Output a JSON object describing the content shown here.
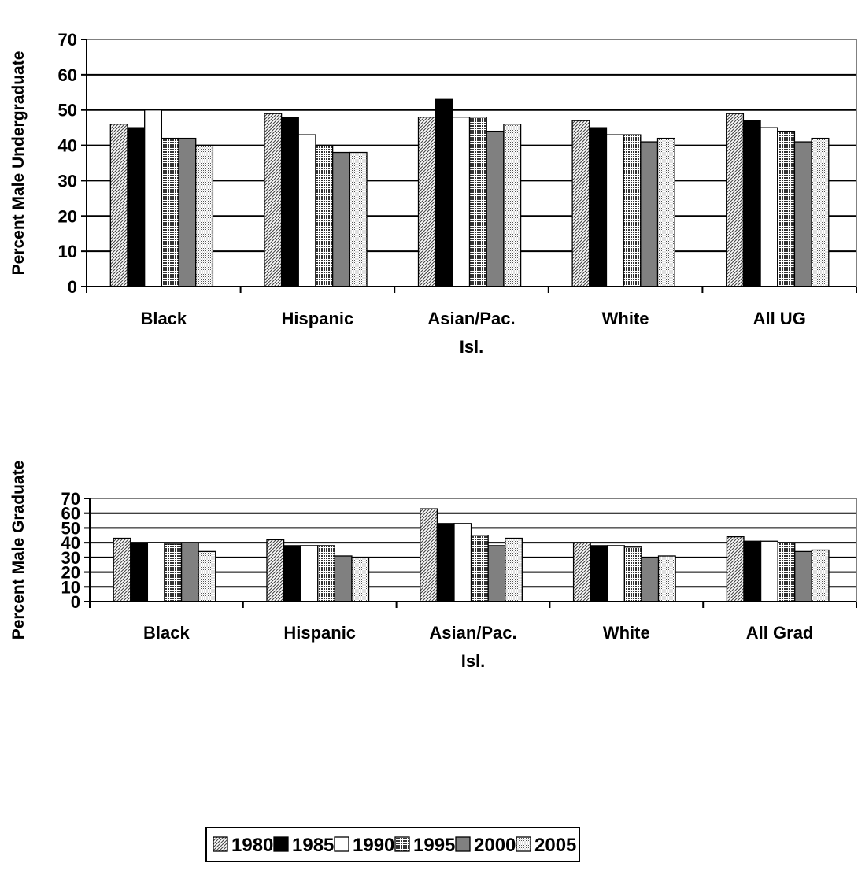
{
  "chart_data": [
    {
      "type": "bar",
      "title": "",
      "xlabel": "",
      "ylabel": "Percent Male Undergraduate",
      "ylim": [
        0,
        70
      ],
      "yticks": [
        0,
        10,
        20,
        30,
        40,
        50,
        60,
        70
      ],
      "grid": true,
      "categories": [
        [
          "Black"
        ],
        [
          "Hispanic"
        ],
        [
          "Asian/Pac.",
          "Isl."
        ],
        [
          "White"
        ],
        [
          "All UG"
        ]
      ],
      "series": [
        {
          "name": "1980",
          "values": [
            46,
            49,
            48,
            47,
            49
          ]
        },
        {
          "name": "1985",
          "values": [
            45,
            48,
            53,
            45,
            47
          ]
        },
        {
          "name": "1990",
          "values": [
            50,
            43,
            48,
            43,
            45
          ]
        },
        {
          "name": "1995",
          "values": [
            42,
            40,
            48,
            43,
            44
          ]
        },
        {
          "name": "2000",
          "values": [
            42,
            38,
            44,
            41,
            41
          ]
        },
        {
          "name": "2005",
          "values": [
            40,
            38,
            46,
            42,
            42
          ]
        }
      ]
    },
    {
      "type": "bar",
      "title": "",
      "xlabel": "",
      "ylabel": "Percent Male Graduate",
      "ylim": [
        0,
        70
      ],
      "yticks": [
        0,
        10,
        20,
        30,
        40,
        50,
        60,
        70
      ],
      "grid": true,
      "categories": [
        [
          "Black"
        ],
        [
          "Hispanic"
        ],
        [
          "Asian/Pac.",
          "Isl."
        ],
        [
          "White"
        ],
        [
          "All Grad"
        ]
      ],
      "series": [
        {
          "name": "1980",
          "values": [
            43,
            42,
            63,
            40,
            44
          ]
        },
        {
          "name": "1985",
          "values": [
            40,
            38,
            53,
            38,
            41
          ]
        },
        {
          "name": "1990",
          "values": [
            40,
            38,
            53,
            38,
            41
          ]
        },
        {
          "name": "1995",
          "values": [
            39,
            38,
            45,
            37,
            40
          ]
        },
        {
          "name": "2000",
          "values": [
            40,
            31,
            38,
            30,
            34
          ]
        },
        {
          "name": "2005",
          "values": [
            34,
            30,
            43,
            31,
            35
          ]
        }
      ]
    }
  ],
  "legend": {
    "placement": "bottom",
    "items": [
      {
        "label": "1980",
        "fill": "diag"
      },
      {
        "label": "1985",
        "fill": "#000000"
      },
      {
        "label": "1990",
        "fill": "#ffffff"
      },
      {
        "label": "1995",
        "fill": "check"
      },
      {
        "label": "2000",
        "fill": "#808080"
      },
      {
        "label": "2005",
        "fill": "dots"
      }
    ]
  }
}
